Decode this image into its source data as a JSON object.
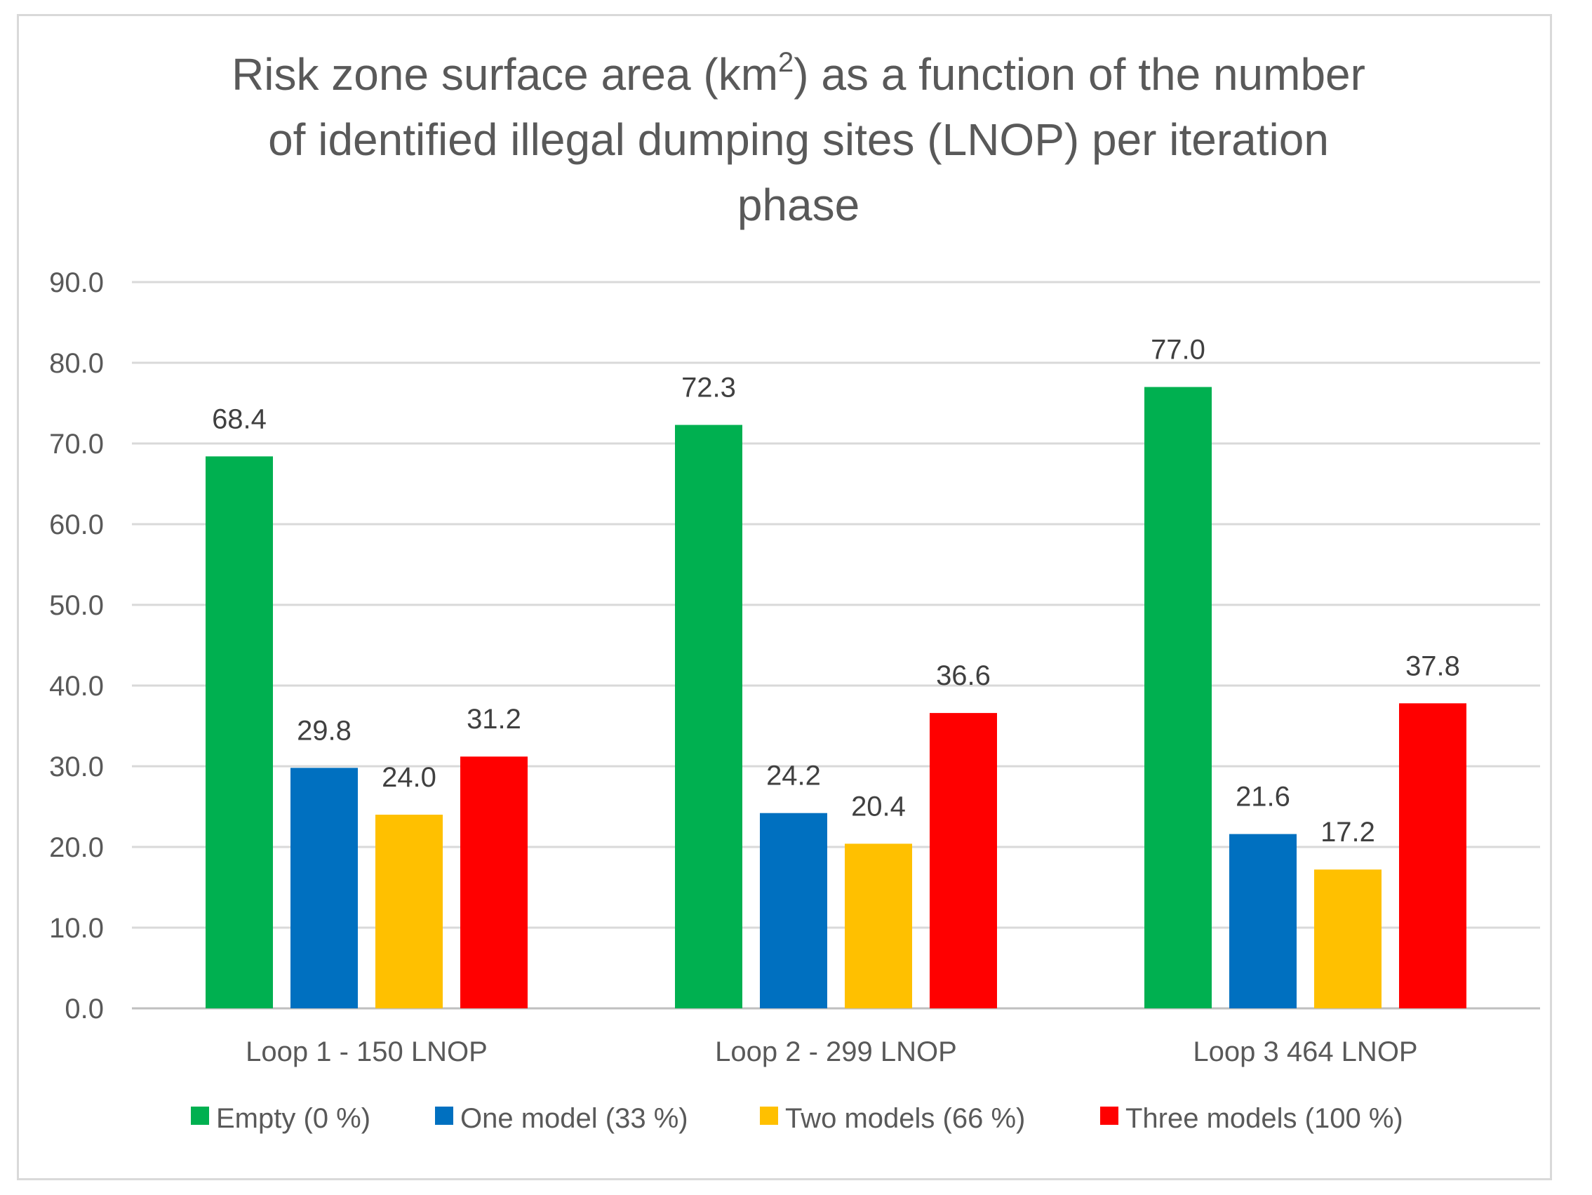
{
  "chart_data": {
    "type": "bar",
    "title_lines": [
      {
        "pre": "Risk zone surface area (km",
        "sup": "2",
        "post": ") as a function of the number"
      },
      {
        "pre": "of identified illegal dumping sites (LNOP) per iteration",
        "sup": "",
        "post": ""
      },
      {
        "pre": "phase",
        "sup": "",
        "post": ""
      }
    ],
    "categories": [
      "Loop 1 - 150 LNOP",
      "Loop 2 - 299 LNOP",
      "Loop 3 464 LNOP"
    ],
    "series": [
      {
        "name": "Empty (0 %)",
        "color": "#00b050",
        "values": [
          68.4,
          72.3,
          77.0
        ]
      },
      {
        "name": "One model (33 %)",
        "color": "#0070c0",
        "values": [
          29.8,
          24.2,
          21.6
        ]
      },
      {
        "name": "Two models (66 %)",
        "color": "#ffc000",
        "values": [
          24.0,
          20.4,
          17.2
        ]
      },
      {
        "name": "Three models (100 %)",
        "color": "#ff0000",
        "values": [
          31.2,
          36.6,
          37.8
        ]
      }
    ],
    "ylim": [
      0,
      90
    ],
    "ytick_step": 10,
    "ytick_labels": [
      "0.0",
      "10.0",
      "20.0",
      "30.0",
      "40.0",
      "50.0",
      "60.0",
      "70.0",
      "80.0",
      "90.0"
    ],
    "grid": true,
    "legend_position": "bottom",
    "xlabel": "",
    "ylabel": ""
  }
}
